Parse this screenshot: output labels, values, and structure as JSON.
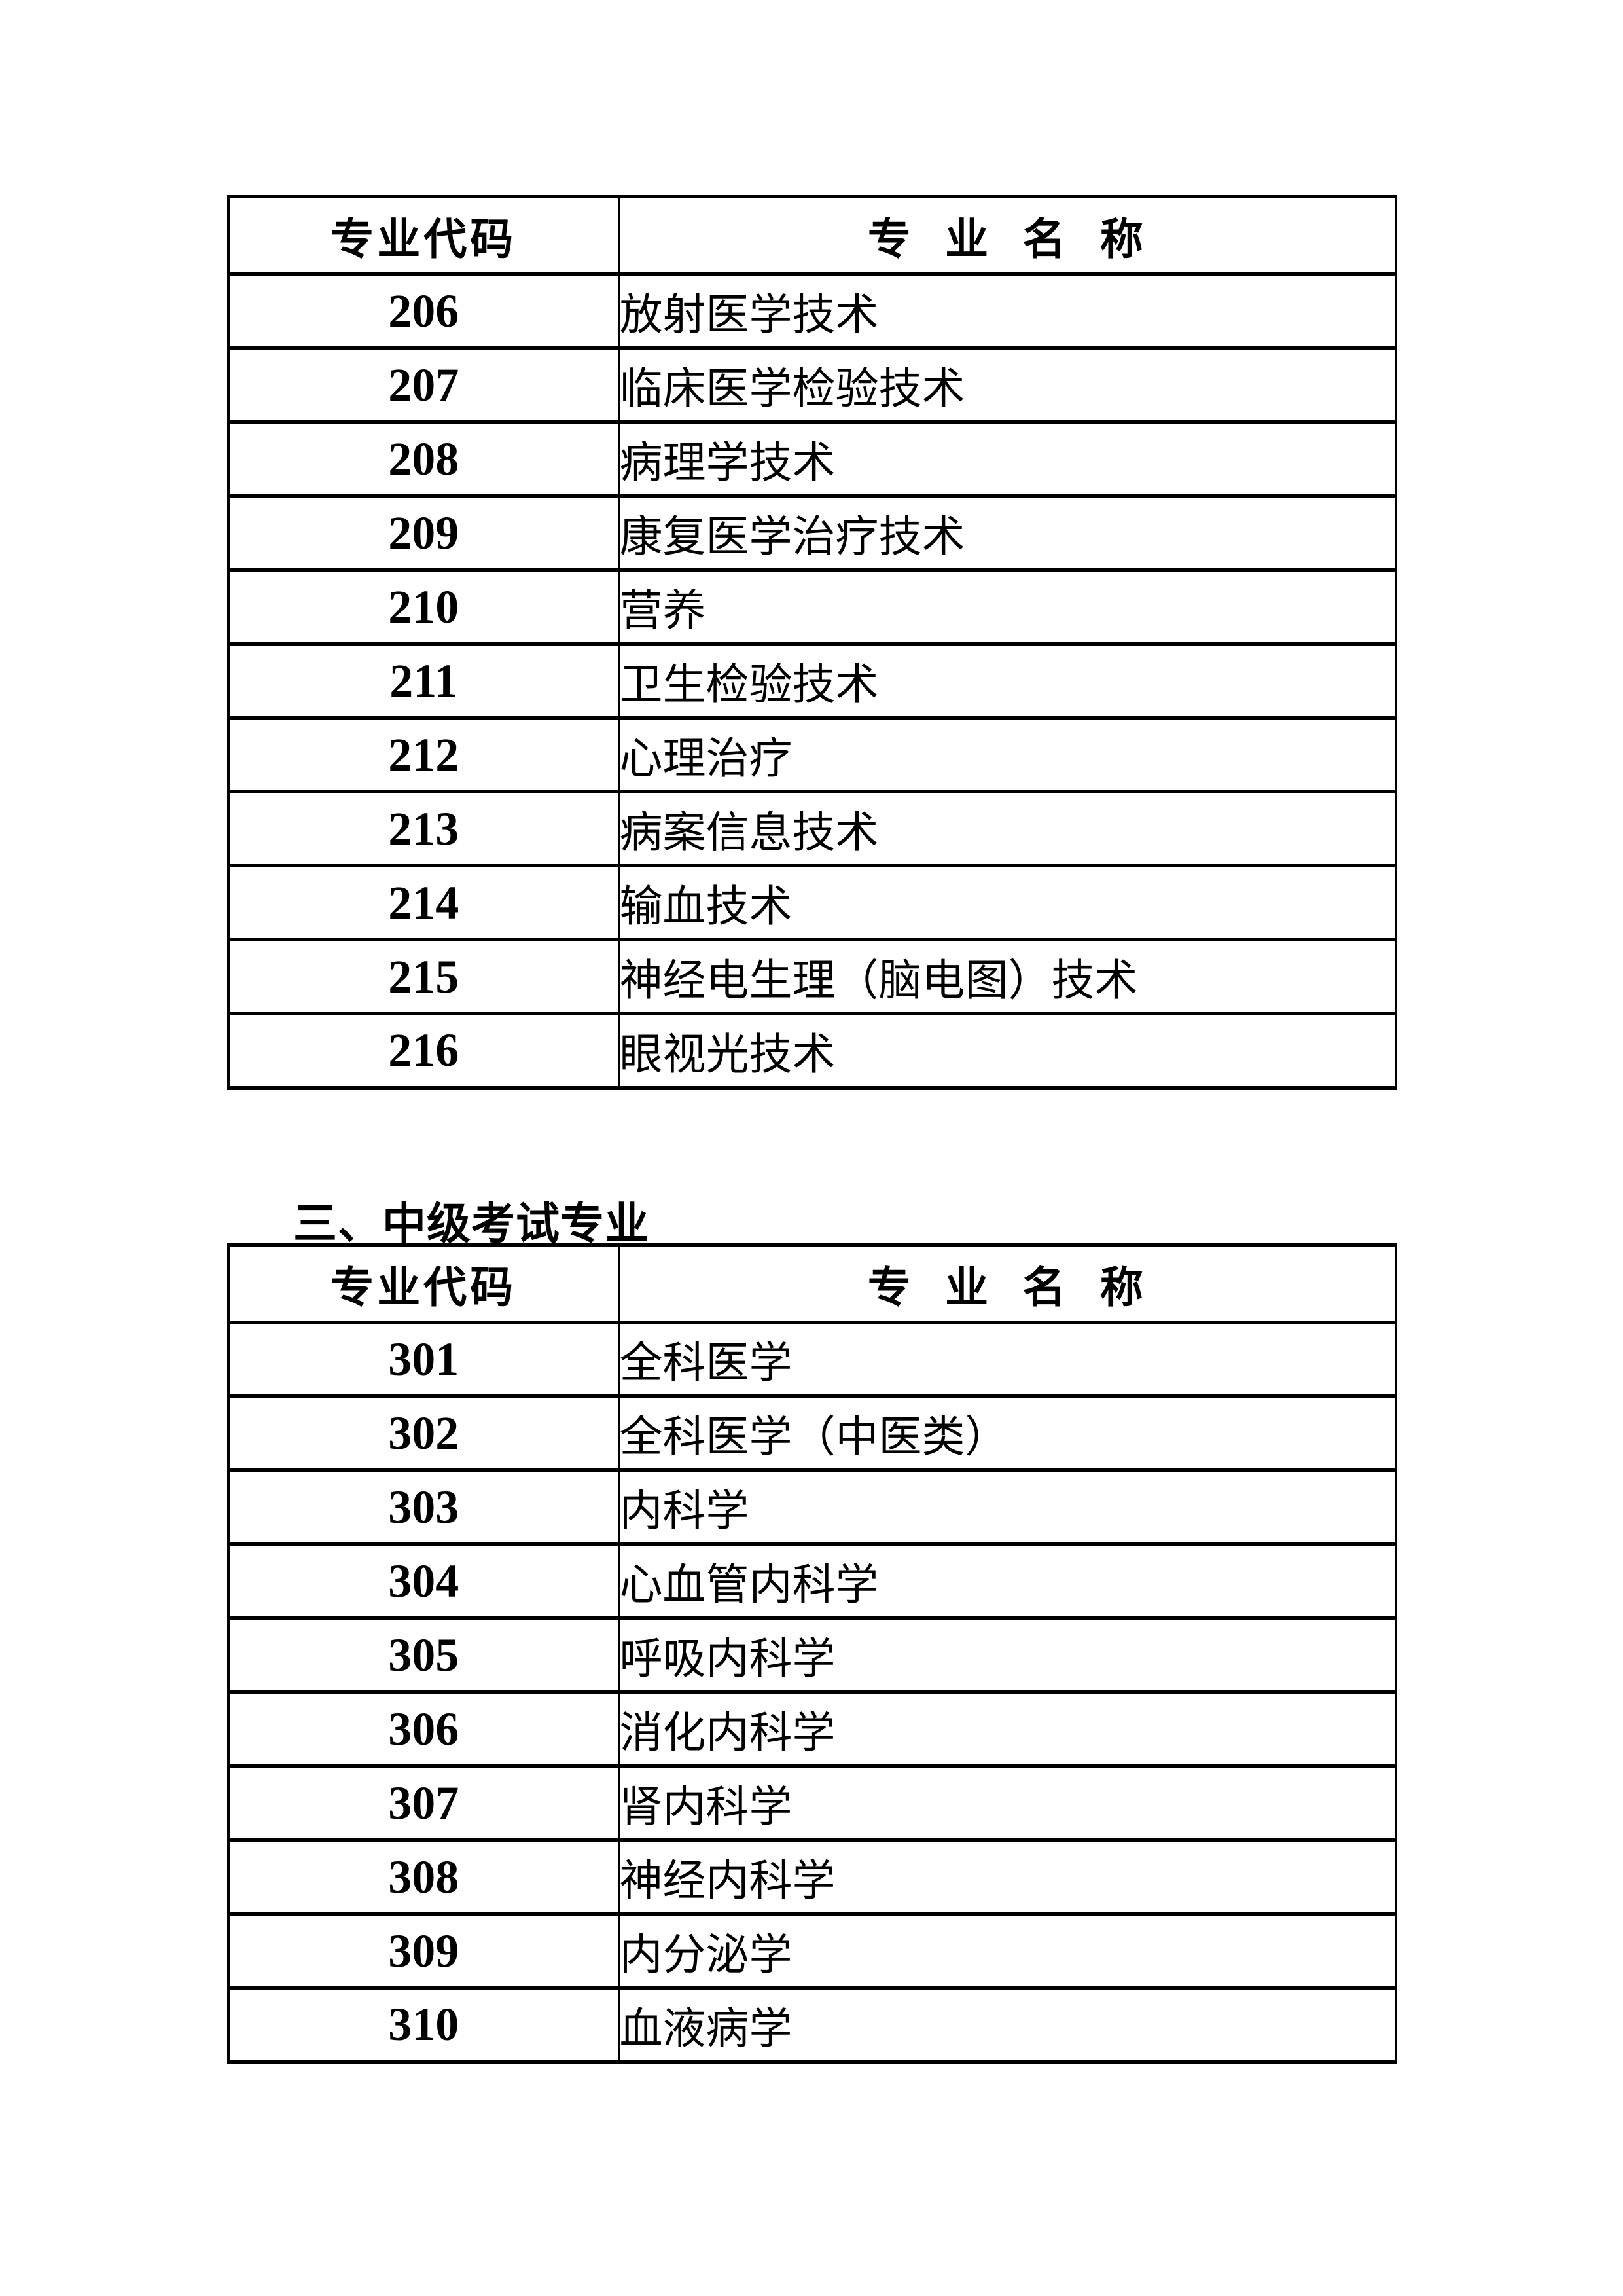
{
  "colors": {
    "background": "#ffffff",
    "text": "#000000",
    "border": "#000000"
  },
  "section_heading": "三、中级考试专业",
  "table1": {
    "headers": {
      "code": "专业代码",
      "name": "专 业 名 称"
    },
    "rows": [
      {
        "code": "206",
        "name": "放射医学技术"
      },
      {
        "code": "207",
        "name": "临床医学检验技术"
      },
      {
        "code": "208",
        "name": "病理学技术"
      },
      {
        "code": "209",
        "name": "康复医学治疗技术"
      },
      {
        "code": "210",
        "name": "营养"
      },
      {
        "code": "211",
        "name": "卫生检验技术"
      },
      {
        "code": "212",
        "name": "心理治疗"
      },
      {
        "code": "213",
        "name": "病案信息技术"
      },
      {
        "code": "214",
        "name": "输血技术"
      },
      {
        "code": "215",
        "name": "神经电生理（脑电图）技术"
      },
      {
        "code": "216",
        "name": "眼视光技术"
      }
    ]
  },
  "table2": {
    "headers": {
      "code": "专业代码",
      "name": "专 业 名 称"
    },
    "rows": [
      {
        "code": "301",
        "name": "全科医学"
      },
      {
        "code": "302",
        "name": "全科医学（中医类）"
      },
      {
        "code": "303",
        "name": "内科学"
      },
      {
        "code": "304",
        "name": "心血管内科学"
      },
      {
        "code": "305",
        "name": "呼吸内科学"
      },
      {
        "code": "306",
        "name": "消化内科学"
      },
      {
        "code": "307",
        "name": "肾内科学"
      },
      {
        "code": "308",
        "name": "神经内科学"
      },
      {
        "code": "309",
        "name": "内分泌学"
      },
      {
        "code": "310",
        "name": "血液病学"
      }
    ]
  }
}
